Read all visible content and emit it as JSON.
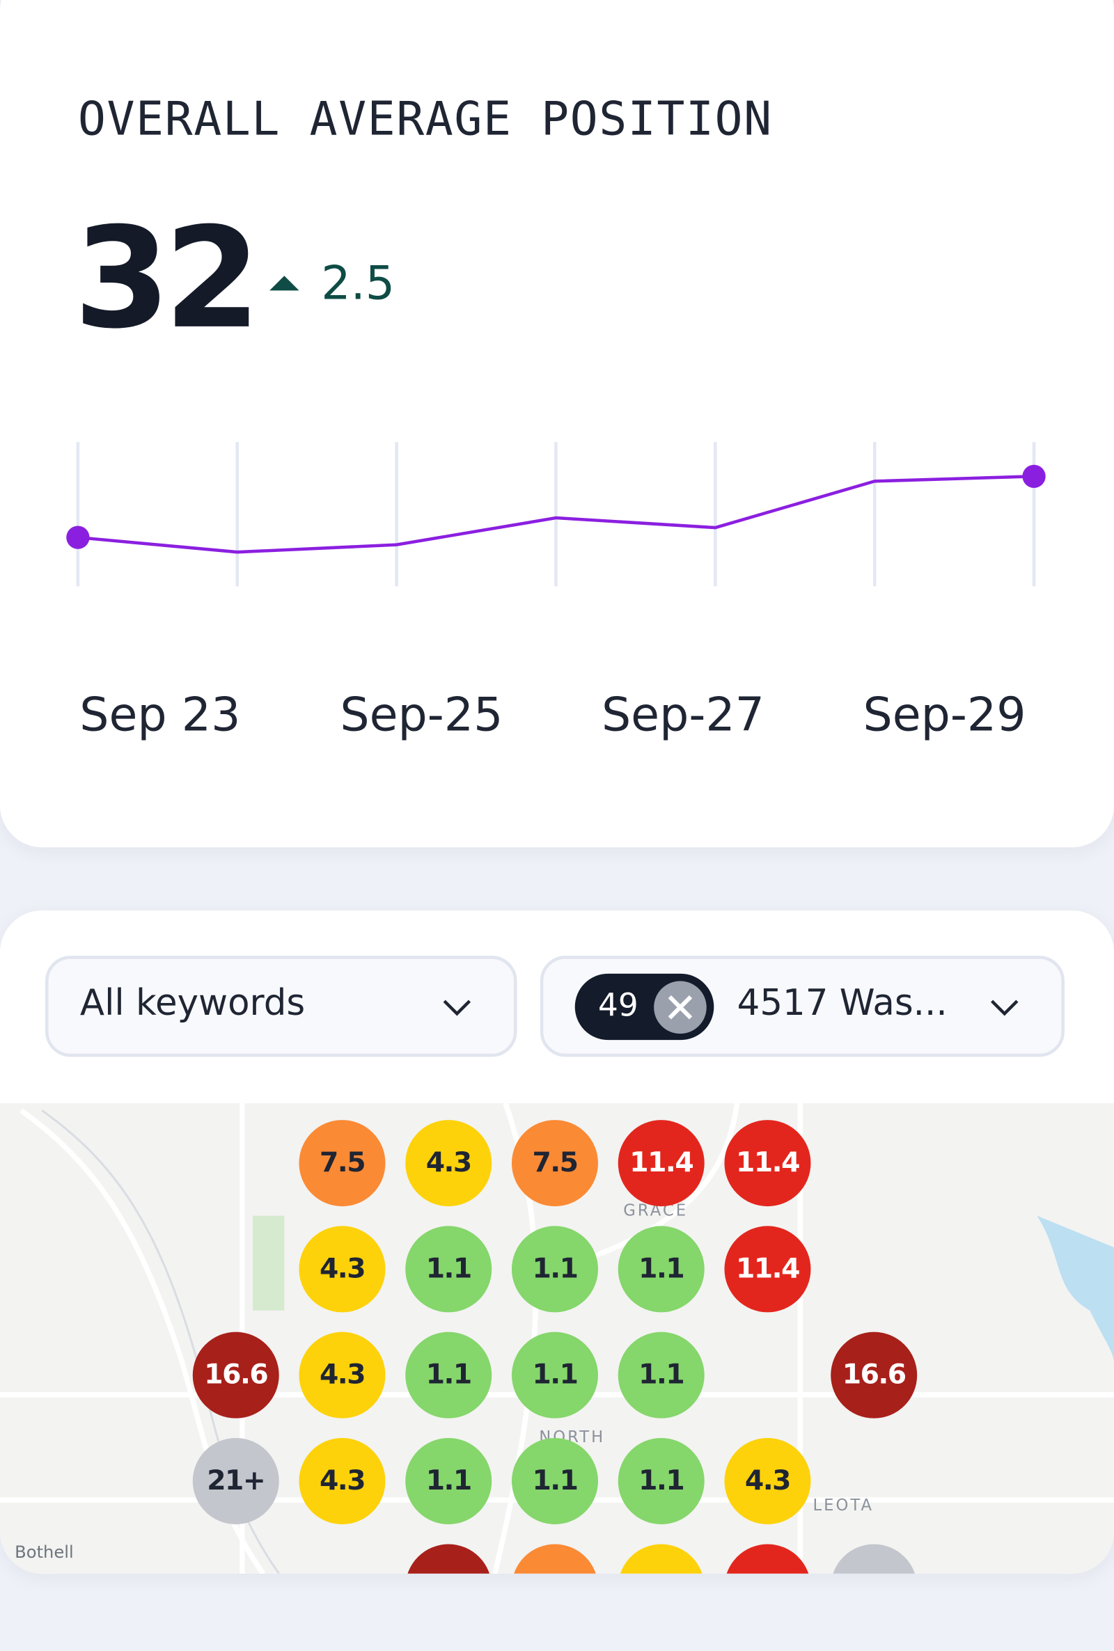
{
  "summary_card": {
    "title": "OVERALL AVERAGE POSITION",
    "value": "32",
    "change": "2.5",
    "chart_data": {
      "type": "line",
      "categories": [
        "Sep 23",
        null,
        "Sep-25",
        null,
        "Sep-27",
        null,
        "Sep-29"
      ],
      "values": [
        34.5,
        35.1,
        34.8,
        33.7,
        34.1,
        32.2,
        32
      ],
      "ylim": [
        36.5,
        30.6
      ],
      "color": "#8b1fe0",
      "grid": true
    }
  },
  "filters": {
    "keywords": "All keywords",
    "location_count": "49",
    "location": "4517 Was..."
  },
  "map": {
    "labels": [
      "GRACE",
      "NORTH",
      "LEOTA",
      "Bothell"
    ],
    "rows": [
      [
        null,
        {
          "label": "7.5",
          "color": "#fb8a35"
        },
        {
          "label": "4.3",
          "color": "#fdd20a"
        },
        {
          "label": "7.5",
          "color": "#fb8a35"
        },
        {
          "label": "11.4",
          "color": "#e3261d"
        },
        {
          "label": "11.4",
          "color": "#e3261d"
        },
        null
      ],
      [
        null,
        {
          "label": "4.3",
          "color": "#fdd20a"
        },
        {
          "label": "1.1",
          "color": "#85d66b"
        },
        {
          "label": "1.1",
          "color": "#85d66b"
        },
        {
          "label": "1.1",
          "color": "#85d66b"
        },
        {
          "label": "11.4",
          "color": "#e3261d"
        },
        null
      ],
      [
        {
          "label": "16.6",
          "color": "#a8201a"
        },
        {
          "label": "4.3",
          "color": "#fdd20a"
        },
        {
          "label": "1.1",
          "color": "#85d66b"
        },
        {
          "label": "1.1",
          "color": "#85d66b"
        },
        {
          "label": "1.1",
          "color": "#85d66b"
        },
        null,
        {
          "label": "16.6",
          "color": "#a8201a"
        }
      ],
      [
        {
          "label": "21+",
          "color": "#c3c6cc"
        },
        {
          "label": "4.3",
          "color": "#fdd20a"
        },
        {
          "label": "1.1",
          "color": "#85d66b"
        },
        {
          "label": "1.1",
          "color": "#85d66b"
        },
        {
          "label": "1.1",
          "color": "#85d66b"
        },
        {
          "label": "4.3",
          "color": "#fdd20a"
        },
        null
      ]
    ]
  }
}
